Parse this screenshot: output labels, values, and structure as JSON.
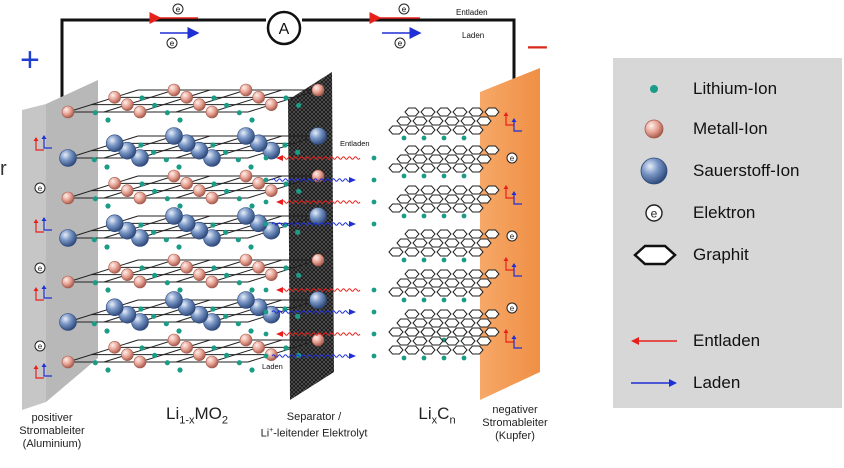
{
  "signs": {
    "plus": "+",
    "minus": "–",
    "stray": "r"
  },
  "circuit": {
    "ammeter": "A",
    "electron": "e",
    "entladen": "Entladen",
    "laden": "Laden"
  },
  "labels": {
    "positive_collector": [
      "positiver",
      "Stromableiter",
      "(Aluminium)"
    ],
    "cathode_formula": {
      "base": "Li",
      "sub": "1-x",
      "rest": "MO",
      "sub2": "2"
    },
    "separator": [
      "Separator /",
      "Li",
      "+",
      "-leitender Elektrolyt"
    ],
    "anode_formula": {
      "base": "Li",
      "sub": "x",
      "mid": "C",
      "sub2": "n"
    },
    "negative_collector": [
      "negativer",
      "Stromableiter",
      "(Kupfer)"
    ],
    "entladen_inner": "Entladen",
    "laden_inner": "Laden"
  },
  "legend": {
    "items": [
      {
        "label": "Lithium-Ion",
        "icon": "lithium-ion-dot"
      },
      {
        "label": "Metall-Ion",
        "icon": "metal-ion-ball"
      },
      {
        "label": "Sauerstoff-Ion",
        "icon": "oxygen-ion-ball"
      },
      {
        "label": "Elektron",
        "icon": "electron-circle"
      },
      {
        "label": "Graphit",
        "icon": "graphite-hexagon"
      },
      {
        "label": "Entladen",
        "icon": "red-arrow-left"
      },
      {
        "label": "Laden",
        "icon": "blue-arrow-right"
      }
    ]
  },
  "colors": {
    "lithium": "#1a9c86",
    "metal": "#e49a8c",
    "oxygen": "#5b7bb0",
    "aluminium": "#b8b8b8",
    "copper": "#f29b55",
    "entladen_arrow": "#e8201c",
    "laden_arrow": "#1f2fd6",
    "plus_sign": "#1f3fd0",
    "minus_sign": "#d62a1c"
  }
}
